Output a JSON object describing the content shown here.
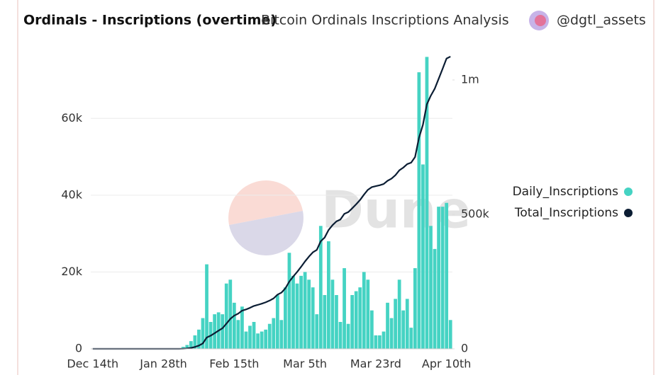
{
  "chart_data": {
    "type": "bar-line",
    "title": "Ordinals - Inscriptions (overtime)",
    "subtitle": "Bitcoin Ordinals Inscriptions Analysis",
    "author": "@dgtl_assets",
    "watermark": "Dune",
    "categories": [
      "Dec 14th",
      null,
      null,
      null,
      null,
      null,
      null,
      null,
      null,
      null,
      null,
      null,
      null,
      null,
      null,
      null,
      null,
      null,
      "Jan 28th",
      null,
      null,
      null,
      null,
      null,
      null,
      null,
      null,
      null,
      null,
      null,
      null,
      null,
      null,
      null,
      null,
      null,
      "Feb 15th",
      null,
      null,
      null,
      null,
      null,
      null,
      null,
      null,
      null,
      null,
      null,
      null,
      null,
      null,
      null,
      null,
      null,
      "Mar 5th",
      null,
      null,
      null,
      null,
      null,
      null,
      null,
      null,
      null,
      null,
      null,
      null,
      null,
      null,
      null,
      null,
      null,
      "Mar 23rd",
      null,
      null,
      null,
      null,
      null,
      null,
      null,
      null,
      null,
      null,
      null,
      null,
      null,
      null,
      null,
      null,
      null,
      "Apr 10th",
      null
    ],
    "series": [
      {
        "name": "Daily_Inscriptions",
        "type": "bar",
        "color": "#45d3c3",
        "values": [
          0,
          0,
          0,
          0,
          0,
          0,
          0,
          0,
          0,
          0,
          0,
          0,
          0,
          0,
          0,
          0,
          0,
          0,
          0,
          0,
          0,
          0,
          0,
          500,
          1000,
          2000,
          3500,
          5000,
          8000,
          22000,
          7000,
          9000,
          9500,
          9000,
          17000,
          18000,
          12000,
          7500,
          11000,
          4500,
          6000,
          7000,
          4000,
          4500,
          5000,
          6500,
          8000,
          14000,
          7500,
          16000,
          25000,
          19000,
          17000,
          19000,
          20000,
          18000,
          16000,
          9000,
          32000,
          14000,
          28000,
          18000,
          14000,
          7000,
          21000,
          6500,
          14000,
          15000,
          16000,
          20000,
          18000,
          10000,
          3500,
          3500,
          4500,
          12000,
          8000,
          13000,
          18000,
          10000,
          13000,
          5500,
          21000,
          72000,
          48000,
          76000,
          32000,
          26000,
          37000,
          37000,
          38000,
          7500
        ]
      },
      {
        "name": "Total_Inscriptions",
        "type": "line",
        "axis": "y2",
        "color": "#0b1d33",
        "values": [
          0,
          0,
          0,
          0,
          0,
          0,
          0,
          0,
          0,
          0,
          0,
          0,
          0,
          0,
          0,
          0,
          0,
          0,
          0,
          0,
          0,
          0,
          0,
          500,
          1500,
          3500,
          7000,
          12000,
          20000,
          42000,
          49000,
          58000,
          67500,
          76500,
          93500,
          111500,
          123500,
          131000,
          142000,
          146500,
          152500,
          159500,
          163500,
          168000,
          173000,
          179500,
          187500,
          201500,
          209000,
          225000,
          250000,
          269000,
          286000,
          305000,
          325000,
          343000,
          359000,
          368000,
          400000,
          414000,
          442000,
          460000,
          474000,
          481000,
          502000,
          508500,
          522500,
          537500,
          553500,
          573500,
          591500,
          601500,
          605000,
          608500,
          613000,
          625000,
          633000,
          646000,
          664000,
          674000,
          687000,
          692500,
          713500,
          785500,
          833500,
          909500,
          941500,
          967500,
          1004500,
          1041500,
          1079500,
          1087000
        ]
      }
    ],
    "ylim": [
      0,
      77000
    ],
    "yticks": [
      0,
      {
        "value": 20000,
        "label": "20k"
      },
      {
        "value": 40000,
        "label": "40k"
      },
      {
        "value": 60000,
        "label": "60k"
      }
    ],
    "y2lim": [
      0,
      1100000
    ],
    "y2ticks": [
      0,
      {
        "value": 500000,
        "label": "500k"
      },
      {
        "value": 1000000,
        "label": "1m"
      }
    ],
    "grid": true,
    "legend": "right"
  }
}
